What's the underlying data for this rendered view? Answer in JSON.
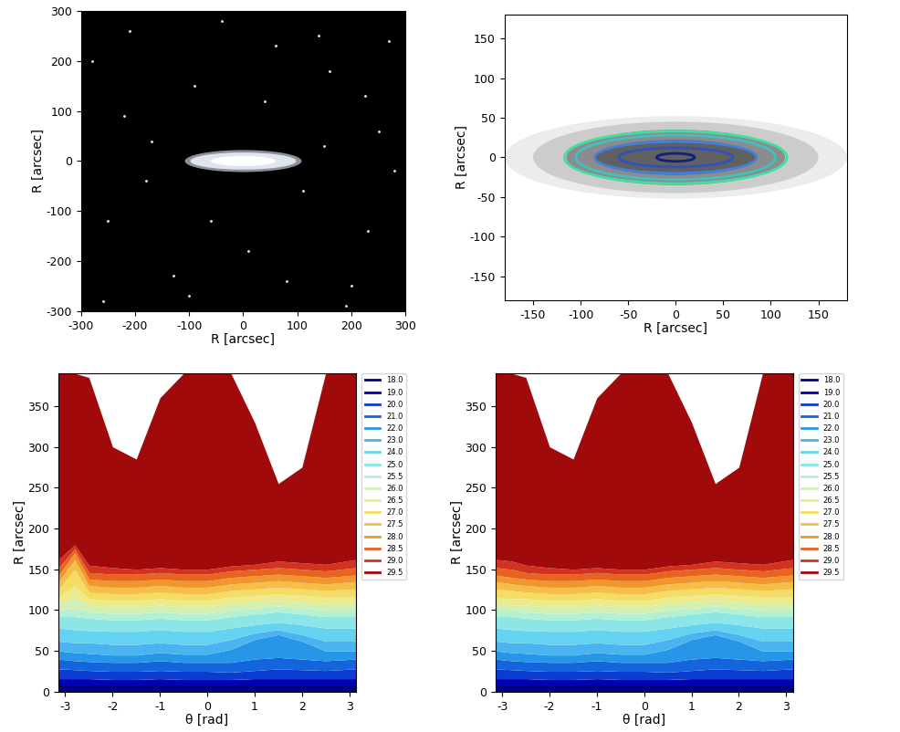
{
  "chart_data": [
    {
      "type": "image",
      "xlabel": "R [arcsec]",
      "ylabel": "R [arcsec]",
      "xlim": [
        -300,
        300
      ],
      "ylim": [
        -300,
        300
      ],
      "xticks": [
        -300,
        -200,
        -100,
        0,
        100,
        200,
        300
      ],
      "yticks": [
        -300,
        -200,
        -100,
        0,
        100,
        200,
        300
      ],
      "background": "#000000",
      "galaxy": [
        {
          "a": 108,
          "b": 22,
          "color": "#8a8f9a"
        },
        {
          "a": 98,
          "b": 17,
          "color": "#dfe4ee"
        },
        {
          "a": 60,
          "b": 10,
          "color": "#ffffff"
        }
      ],
      "stars": {
        "x": [
          -280,
          -250,
          -210,
          -170,
          -130,
          -90,
          -40,
          10,
          60,
          110,
          160,
          200,
          250,
          280,
          -260,
          -180,
          -60,
          40,
          140,
          230,
          270,
          -220,
          -100,
          80,
          190,
          225,
          150
        ],
        "y": [
          200,
          -120,
          260,
          40,
          -230,
          150,
          280,
          -180,
          230,
          -60,
          180,
          -250,
          60,
          -20,
          -280,
          -40,
          -120,
          120,
          250,
          -140,
          240,
          90,
          -270,
          -240,
          -290,
          130,
          30
        ],
        "color": "#ffffff"
      }
    },
    {
      "type": "contour",
      "xlabel": "R [arcsec]",
      "ylabel": "R [arcsec]",
      "xlim": [
        -180,
        180
      ],
      "ylim": [
        -180,
        180
      ],
      "xticks": [
        -150,
        -100,
        -50,
        0,
        50,
        100,
        150
      ],
      "yticks": [
        -150,
        -100,
        -50,
        0,
        50,
        100,
        150
      ],
      "regions": [
        {
          "a": 180,
          "b": 52,
          "color": "#ececec"
        },
        {
          "a": 150,
          "b": 45,
          "color": "#cccccc"
        },
        {
          "a": 115,
          "b": 35,
          "color": "#8c8c8c"
        },
        {
          "a": 85,
          "b": 22,
          "color": "#606060"
        }
      ],
      "contours": [
        {
          "a": 117,
          "b": 33,
          "color": "#40e0a0"
        },
        {
          "a": 105,
          "b": 28,
          "color": "#40c0c0"
        },
        {
          "a": 85,
          "b": 20,
          "color": "#4080e0"
        },
        {
          "a": 60,
          "b": 12,
          "color": "#3050c0"
        },
        {
          "a": 20,
          "b": 5,
          "color": "#102080"
        }
      ]
    },
    {
      "type": "contourf",
      "xlabel": "θ [rad]",
      "ylabel": "R [arcsec]",
      "xlim": [
        -3.14,
        3.14
      ],
      "ylim": [
        0,
        390
      ],
      "xticks": [
        -3,
        -2,
        -1,
        0,
        1,
        2,
        3
      ],
      "yticks": [
        0,
        50,
        100,
        150,
        200,
        250,
        300,
        350
      ],
      "legend": "right",
      "theta": [
        -3.14,
        -2.8,
        -2.5,
        -2.0,
        -1.5,
        -1.0,
        -0.5,
        0.0,
        0.5,
        1.0,
        1.5,
        2.0,
        2.5,
        3.14
      ],
      "levels": [
        18.0,
        19.0,
        20.0,
        21.0,
        22.0,
        23.0,
        24.0,
        25.0,
        25.5,
        26.0,
        26.5,
        27.0,
        27.5,
        28.0,
        28.5,
        29.0,
        29.5
      ],
      "colors": [
        "#000080",
        "#0000b4",
        "#0a3cd2",
        "#1464dc",
        "#2896e6",
        "#4bb4f0",
        "#64d2f0",
        "#8ce6e6",
        "#b4f0d2",
        "#d2f0b4",
        "#ebeb8c",
        "#f5dc64",
        "#f5be46",
        "#f0962d",
        "#e6641e",
        "#d2321e",
        "#a00a0a"
      ],
      "outer_radius": [
        [
          8,
          8,
          8,
          8,
          8,
          8,
          8,
          8,
          8,
          8,
          8,
          8,
          8,
          8
        ],
        [
          16,
          16,
          16,
          15,
          15,
          16,
          15,
          15,
          15,
          16,
          16,
          16,
          16,
          16
        ],
        [
          28,
          27,
          26,
          25,
          25,
          26,
          25,
          25,
          24,
          26,
          28,
          27,
          26,
          28
        ],
        [
          40,
          38,
          37,
          36,
          36,
          38,
          36,
          36,
          36,
          40,
          42,
          40,
          38,
          40
        ],
        [
          50,
          48,
          47,
          45,
          45,
          48,
          46,
          46,
          52,
          64,
          70,
          62,
          50,
          50
        ],
        [
          62,
          60,
          60,
          58,
          58,
          60,
          58,
          58,
          64,
          72,
          76,
          70,
          62,
          62
        ],
        [
          78,
          76,
          75,
          74,
          74,
          76,
          74,
          74,
          78,
          82,
          85,
          82,
          78,
          78
        ],
        [
          92,
          92,
          90,
          88,
          88,
          90,
          88,
          88,
          92,
          95,
          98,
          95,
          92,
          92
        ],
        [
          100,
          102,
          98,
          96,
          96,
          98,
          96,
          96,
          100,
          102,
          105,
          102,
          100,
          100
        ],
        [
          108,
          115,
          106,
          104,
          104,
          106,
          104,
          104,
          108,
          110,
          112,
          110,
          108,
          108
        ],
        [
          116,
          130,
          114,
          112,
          112,
          114,
          112,
          112,
          116,
          118,
          120,
          118,
          116,
          116
        ],
        [
          126,
          150,
          122,
          120,
          120,
          122,
          120,
          120,
          124,
          126,
          128,
          126,
          124,
          126
        ],
        [
          135,
          162,
          130,
          128,
          128,
          130,
          128,
          128,
          132,
          134,
          136,
          134,
          132,
          135
        ],
        [
          143,
          170,
          138,
          136,
          136,
          138,
          136,
          136,
          140,
          142,
          144,
          142,
          140,
          143
        ],
        [
          152,
          175,
          146,
          144,
          144,
          146,
          144,
          144,
          148,
          150,
          152,
          150,
          148,
          152
        ],
        [
          162,
          180,
          155,
          152,
          150,
          152,
          150,
          150,
          154,
          156,
          160,
          158,
          156,
          162
        ],
        [
          390,
          390,
          385,
          300,
          285,
          360,
          390,
          390,
          390,
          330,
          255,
          275,
          390,
          390
        ]
      ]
    },
    {
      "type": "contourf",
      "xlabel": "θ [rad]",
      "ylabel": "R [arcsec]",
      "xlim": [
        -3.14,
        3.14
      ],
      "ylim": [
        0,
        390
      ],
      "xticks": [
        -3,
        -2,
        -1,
        0,
        1,
        2,
        3
      ],
      "yticks": [
        0,
        50,
        100,
        150,
        200,
        250,
        300,
        350
      ],
      "legend": "right",
      "theta": [
        -3.14,
        -2.8,
        -2.5,
        -2.0,
        -1.5,
        -1.0,
        -0.5,
        0.0,
        0.5,
        1.0,
        1.5,
        2.0,
        2.5,
        3.14
      ],
      "levels": [
        18.0,
        19.0,
        20.0,
        21.0,
        22.0,
        23.0,
        24.0,
        25.0,
        25.5,
        26.0,
        26.5,
        27.0,
        27.5,
        28.0,
        28.5,
        29.0,
        29.5
      ],
      "colors": [
        "#000080",
        "#0000b4",
        "#0a3cd2",
        "#1464dc",
        "#2896e6",
        "#4bb4f0",
        "#64d2f0",
        "#8ce6e6",
        "#b4f0d2",
        "#d2f0b4",
        "#ebeb8c",
        "#f5dc64",
        "#f5be46",
        "#f0962d",
        "#e6641e",
        "#d2321e",
        "#a00a0a"
      ],
      "outer_radius": [
        [
          8,
          8,
          8,
          8,
          8,
          8,
          8,
          8,
          8,
          8,
          8,
          8,
          8,
          8
        ],
        [
          16,
          16,
          16,
          15,
          15,
          16,
          15,
          15,
          15,
          16,
          16,
          16,
          16,
          16
        ],
        [
          28,
          27,
          26,
          25,
          25,
          26,
          25,
          25,
          24,
          26,
          28,
          27,
          26,
          28
        ],
        [
          40,
          38,
          37,
          36,
          36,
          38,
          36,
          36,
          36,
          40,
          42,
          40,
          38,
          40
        ],
        [
          50,
          48,
          47,
          45,
          45,
          48,
          46,
          46,
          52,
          64,
          70,
          62,
          50,
          50
        ],
        [
          62,
          60,
          60,
          58,
          58,
          60,
          58,
          58,
          64,
          72,
          76,
          70,
          62,
          62
        ],
        [
          78,
          76,
          75,
          74,
          74,
          76,
          74,
          74,
          78,
          82,
          85,
          82,
          78,
          78
        ],
        [
          92,
          92,
          90,
          88,
          88,
          90,
          88,
          88,
          92,
          95,
          98,
          95,
          92,
          92
        ],
        [
          100,
          100,
          98,
          96,
          96,
          98,
          96,
          96,
          100,
          102,
          105,
          102,
          100,
          100
        ],
        [
          108,
          106,
          106,
          104,
          104,
          106,
          104,
          104,
          108,
          110,
          112,
          110,
          108,
          108
        ],
        [
          116,
          114,
          114,
          112,
          112,
          114,
          112,
          112,
          116,
          118,
          120,
          118,
          116,
          116
        ],
        [
          126,
          124,
          122,
          120,
          120,
          122,
          120,
          120,
          124,
          126,
          128,
          126,
          124,
          126
        ],
        [
          135,
          132,
          130,
          128,
          128,
          130,
          128,
          128,
          132,
          134,
          136,
          134,
          132,
          135
        ],
        [
          143,
          140,
          138,
          136,
          136,
          138,
          136,
          136,
          140,
          142,
          144,
          142,
          140,
          143
        ],
        [
          152,
          150,
          146,
          144,
          144,
          146,
          144,
          144,
          148,
          150,
          152,
          150,
          148,
          152
        ],
        [
          162,
          160,
          155,
          152,
          150,
          152,
          150,
          150,
          154,
          156,
          160,
          158,
          156,
          162
        ],
        [
          390,
          390,
          385,
          300,
          285,
          360,
          390,
          390,
          390,
          330,
          255,
          275,
          390,
          390
        ]
      ]
    }
  ]
}
